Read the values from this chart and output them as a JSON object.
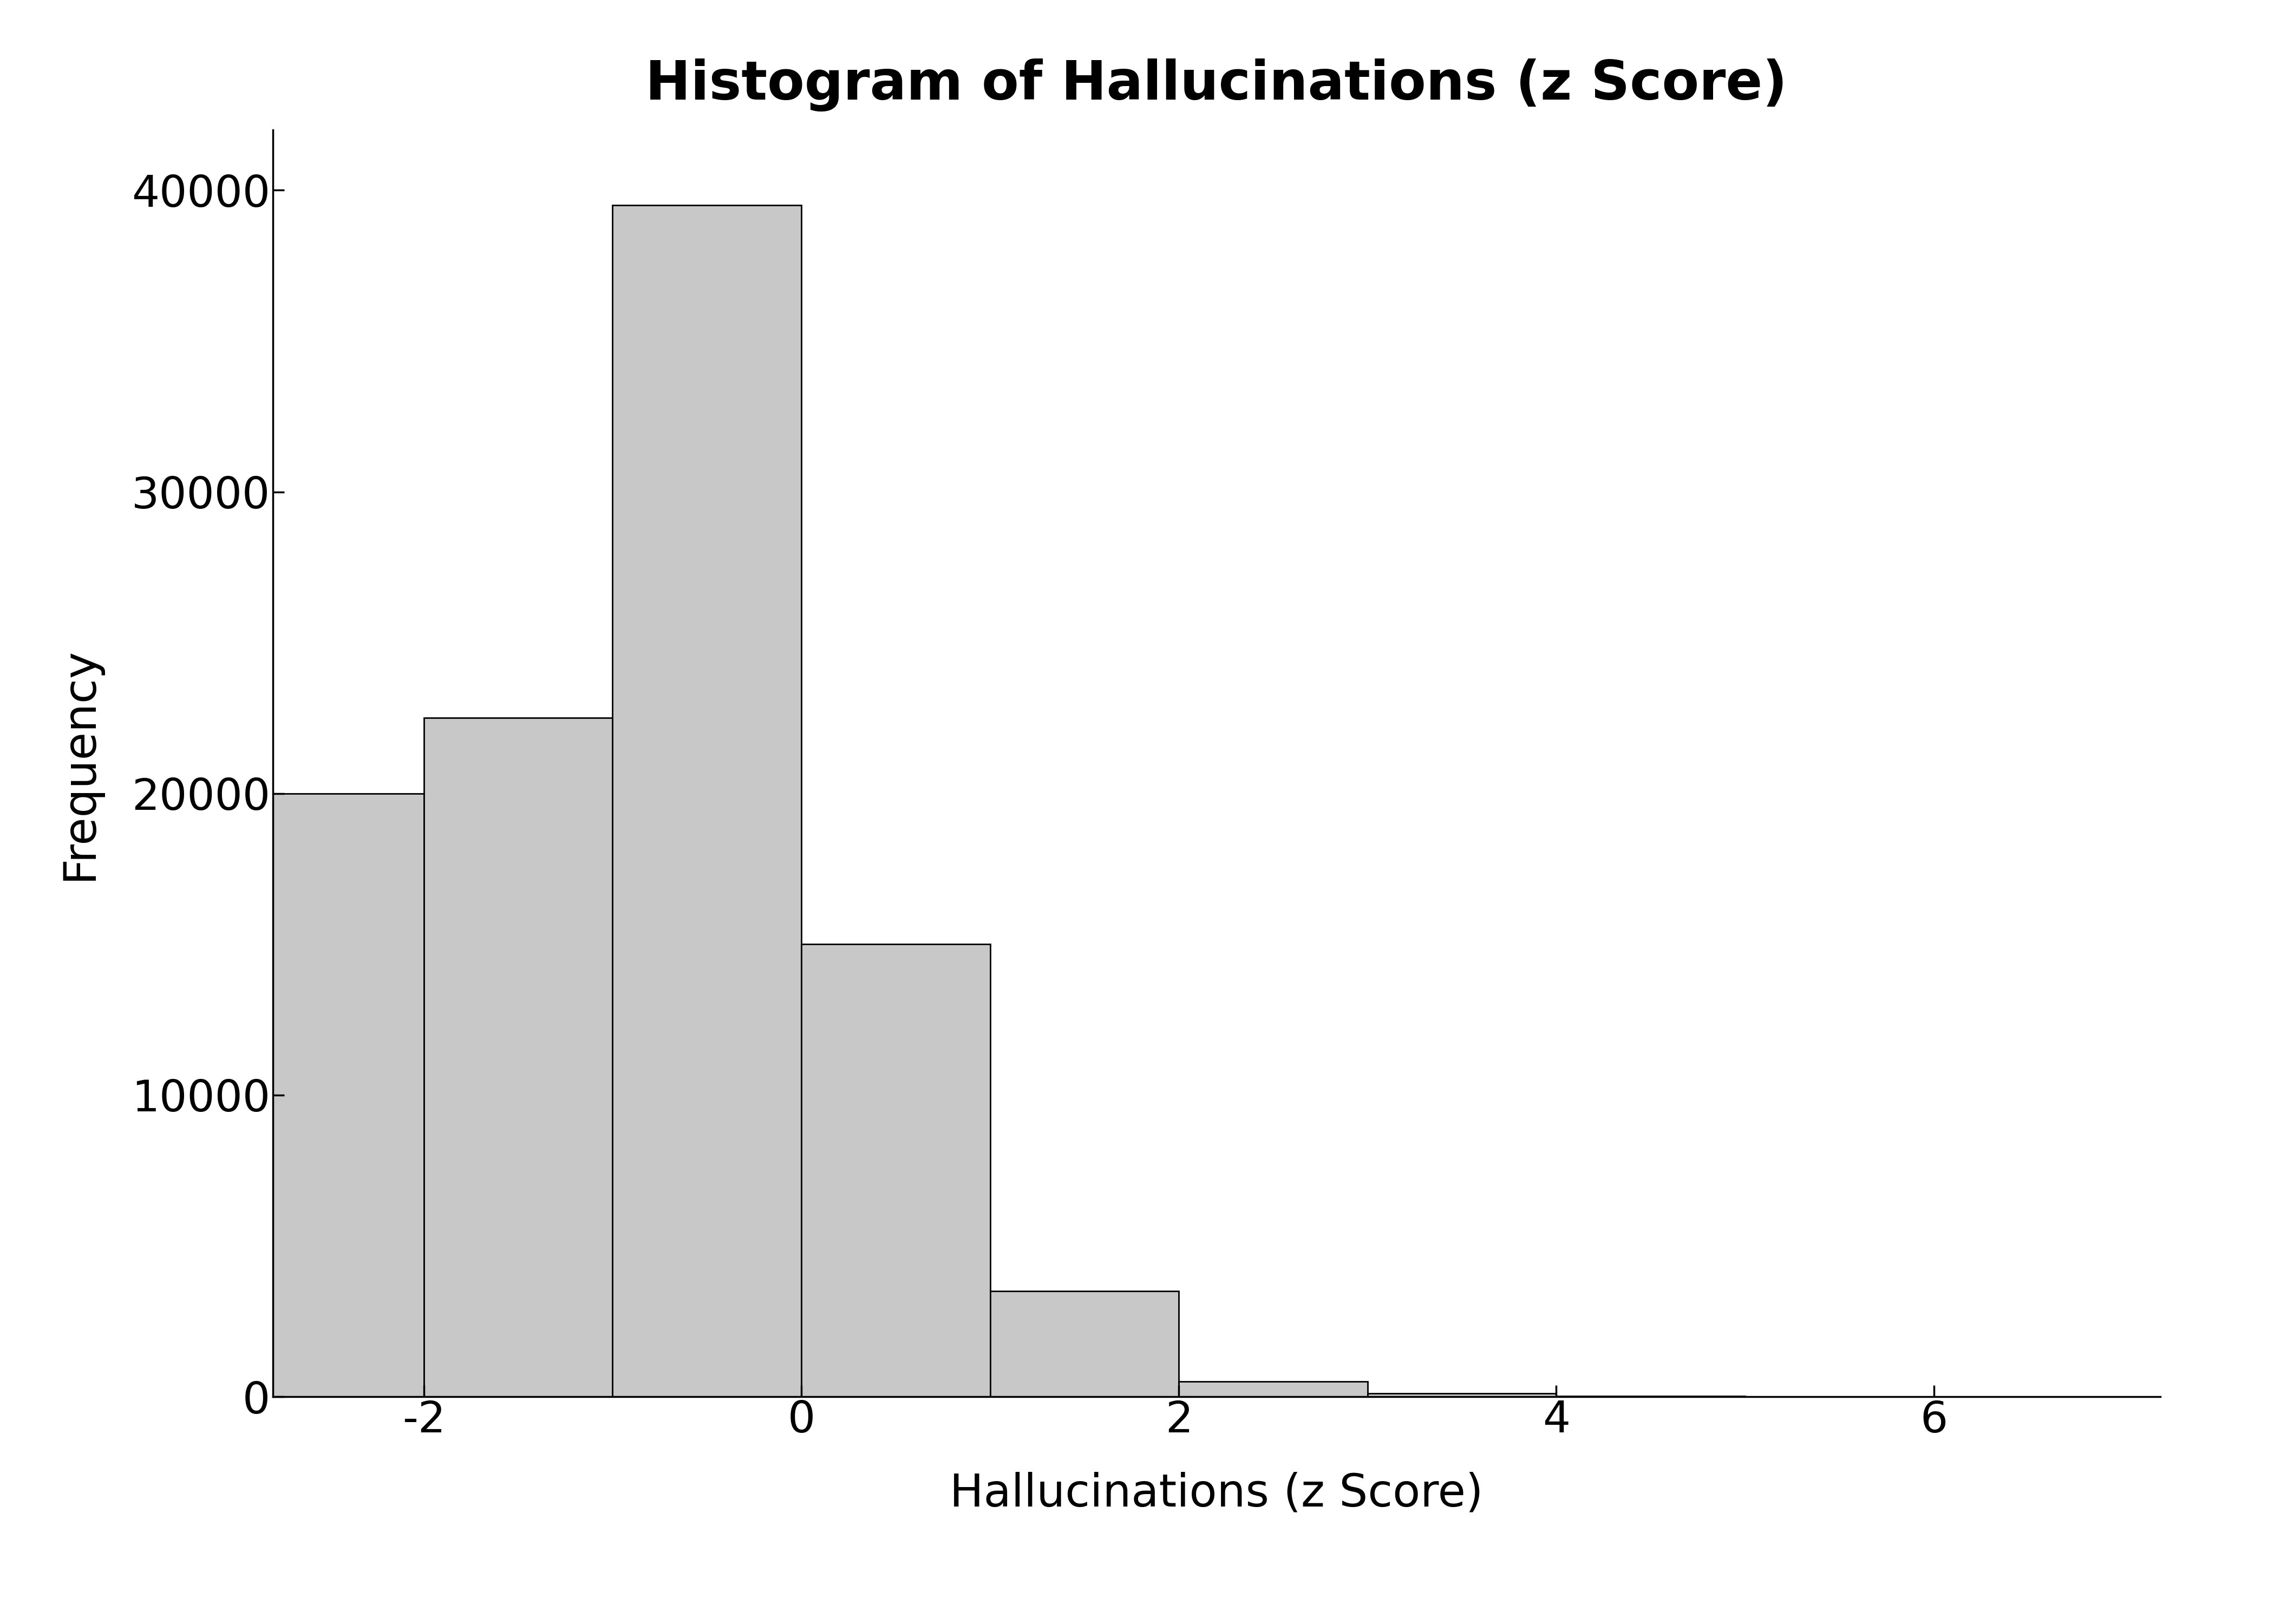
{
  "title": "Histogram of Hallucinations (z Score)",
  "xlabel": "Hallucinations (z Score)",
  "ylabel": "Frequency",
  "bar_color": "#c8c8c8",
  "bar_edgecolor": "#000000",
  "background_color": "#ffffff",
  "title_fontsize": 72,
  "label_fontsize": 60,
  "tick_fontsize": 58,
  "bins": [
    -3,
    -2,
    -1,
    0,
    1,
    2,
    3,
    4,
    5,
    6,
    7
  ],
  "bar_heights": [
    20000,
    22500,
    39500,
    15000,
    3500,
    500,
    100,
    20,
    5,
    2
  ],
  "xlim": [
    -2.8,
    7.2
  ],
  "ylim": [
    0,
    42000
  ],
  "yticks": [
    0,
    10000,
    20000,
    30000,
    40000
  ],
  "xticks": [
    -2,
    0,
    2,
    4,
    6
  ]
}
